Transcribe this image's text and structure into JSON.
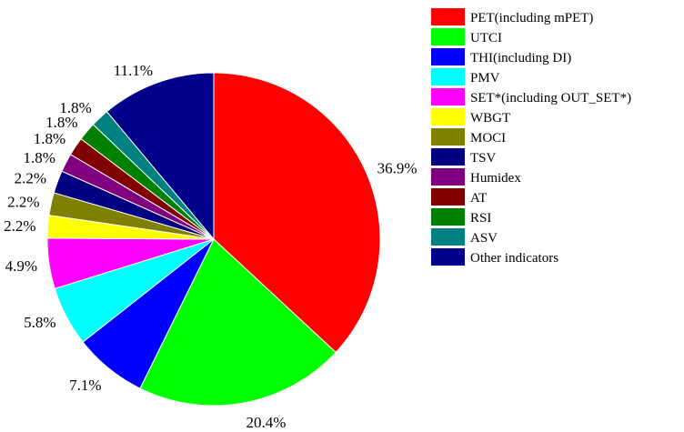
{
  "chart_data": {
    "type": "pie",
    "start_angle_deg": 0,
    "direction": "clockwise",
    "legend_position": "right",
    "slices": [
      {
        "label": "PET(including mPET)",
        "value": 36.9,
        "display": "36.9%",
        "color": "#ff0000"
      },
      {
        "label": "UTCI",
        "value": 20.4,
        "display": "20.4%",
        "color": "#00ff00"
      },
      {
        "label": "THI(including DI)",
        "value": 7.1,
        "display": "7.1%",
        "color": "#0000ff"
      },
      {
        "label": "PMV",
        "value": 5.8,
        "display": "5.8%",
        "color": "#00ffff"
      },
      {
        "label": "SET*(including OUT_SET*)",
        "value": 4.9,
        "display": "4.9%",
        "color": "#ff00ff"
      },
      {
        "label": "WBGT",
        "value": 2.2,
        "display": "2.2%",
        "color": "#ffff00"
      },
      {
        "label": "MOCI",
        "value": 2.2,
        "display": "2.2%",
        "color": "#808000"
      },
      {
        "label": "TSV",
        "value": 2.2,
        "display": "2.2%",
        "color": "#000080"
      },
      {
        "label": "Humidex",
        "value": 1.8,
        "display": "1.8%",
        "color": "#800080"
      },
      {
        "label": "AT",
        "value": 1.8,
        "display": "1.8%",
        "color": "#800000"
      },
      {
        "label": "RSI",
        "value": 1.8,
        "display": "1.8%",
        "color": "#008000"
      },
      {
        "label": "ASV",
        "value": 1.8,
        "display": "1.8%",
        "color": "#008080"
      },
      {
        "label": "Other indicators",
        "value": 11.1,
        "display": "11.1%",
        "color": "#00008b"
      }
    ]
  }
}
